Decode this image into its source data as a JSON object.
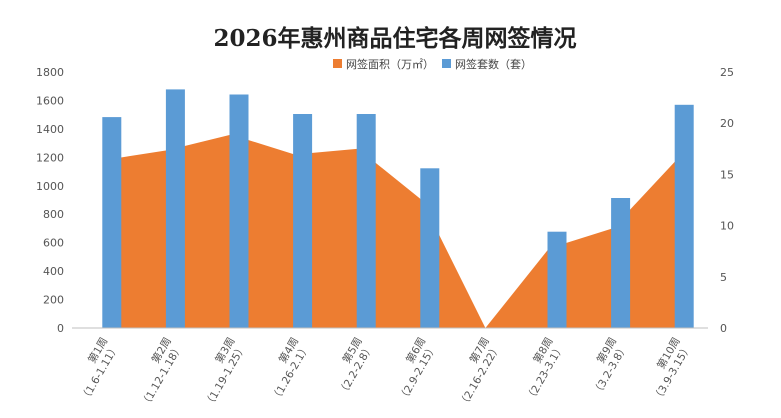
{
  "chart_data": {
    "type": "bar",
    "title": "2026年惠州商品住宅各周网签情况",
    "categories": [
      "第1周（1.6-1.11）",
      "第2周（1.12-1.18）",
      "第3周（1.19-1.25）",
      "第4周（1.26-2.1）",
      "第5周（2.2-2.8）",
      "第6周（2.9-2.15）",
      "第7周（2.16-2.22）",
      "第8周（2.23-3.1）",
      "第9周（3.2-3.8）",
      "第10周（3.9-3.15）"
    ],
    "category_lines": [
      [
        "第1周",
        "（1.6-1.11）"
      ],
      [
        "第2周",
        "（1.12-1.18）"
      ],
      [
        "第3周",
        "（1.19-1.25）"
      ],
      [
        "第4周",
        "（1.26-2.1）"
      ],
      [
        "第5周",
        "（2.2-2.8）"
      ],
      [
        "第6周",
        "（2.9-2.15）"
      ],
      [
        "第7周",
        "（2.16-2.22）"
      ],
      [
        "第8周",
        "（2.23-3.1）"
      ],
      [
        "第9周",
        "（3.2-3.8）"
      ],
      [
        "第10周",
        "（3.9-3.15）"
      ]
    ],
    "series": [
      {
        "name": "网签面积（万㎡）",
        "type": "area",
        "axis": "left",
        "color": "#ED7D31",
        "values": [
          1180,
          1250,
          1360,
          1220,
          1260,
          900,
          0,
          560,
          700,
          1180
        ]
      },
      {
        "name": "网签套数（套）",
        "type": "bar",
        "axis": "right",
        "color": "#5B9BD5",
        "values": [
          20.6,
          23.3,
          22.8,
          20.9,
          20.9,
          15.6,
          0,
          9.4,
          12.7,
          21.8
        ]
      }
    ],
    "y_left": {
      "min": 0,
      "max": 1800,
      "ticks": [
        0,
        200,
        400,
        600,
        800,
        1000,
        1200,
        1400,
        1600,
        1800
      ]
    },
    "y_right": {
      "min": 0,
      "max": 25,
      "ticks": [
        0,
        5,
        10,
        15,
        20,
        25
      ]
    },
    "legend_position": "top-center",
    "grid": false
  }
}
